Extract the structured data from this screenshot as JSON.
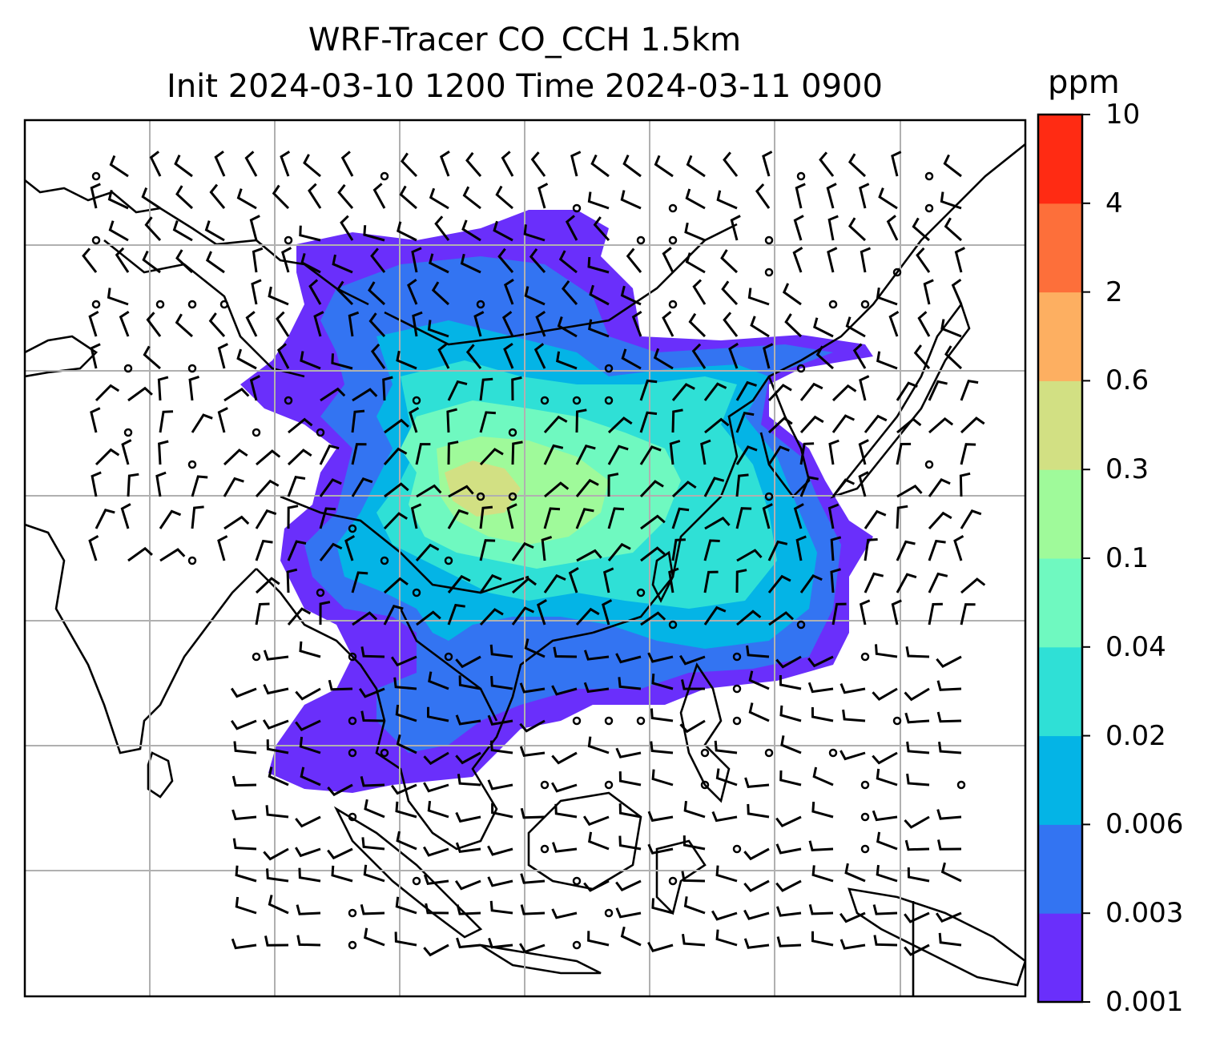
{
  "title": {
    "line1": "WRF-Tracer CO_CCH 1.5km",
    "line2": "Init 2024-03-10 1200 Time 2024-03-11 0900"
  },
  "colorbar": {
    "unit": "ppm",
    "levels": [
      "0.001",
      "0.003",
      "0.006",
      "0.02",
      "0.04",
      "0.1",
      "0.3",
      "0.6",
      "2",
      "4",
      "10"
    ],
    "colors": [
      "#6a2ffb",
      "#3374f2",
      "#04b4e6",
      "#2fe0d6",
      "#6ff9c0",
      "#9ffa9a",
      "#d2e083",
      "#fdaf61",
      "#fd6f3a",
      "#ff2b13"
    ]
  },
  "map": {
    "features": [
      "coastlines",
      "country-borders",
      "gridlines",
      "wind-barbs",
      "tracer-contours"
    ],
    "gridline_color": "#b0b0b0"
  }
}
